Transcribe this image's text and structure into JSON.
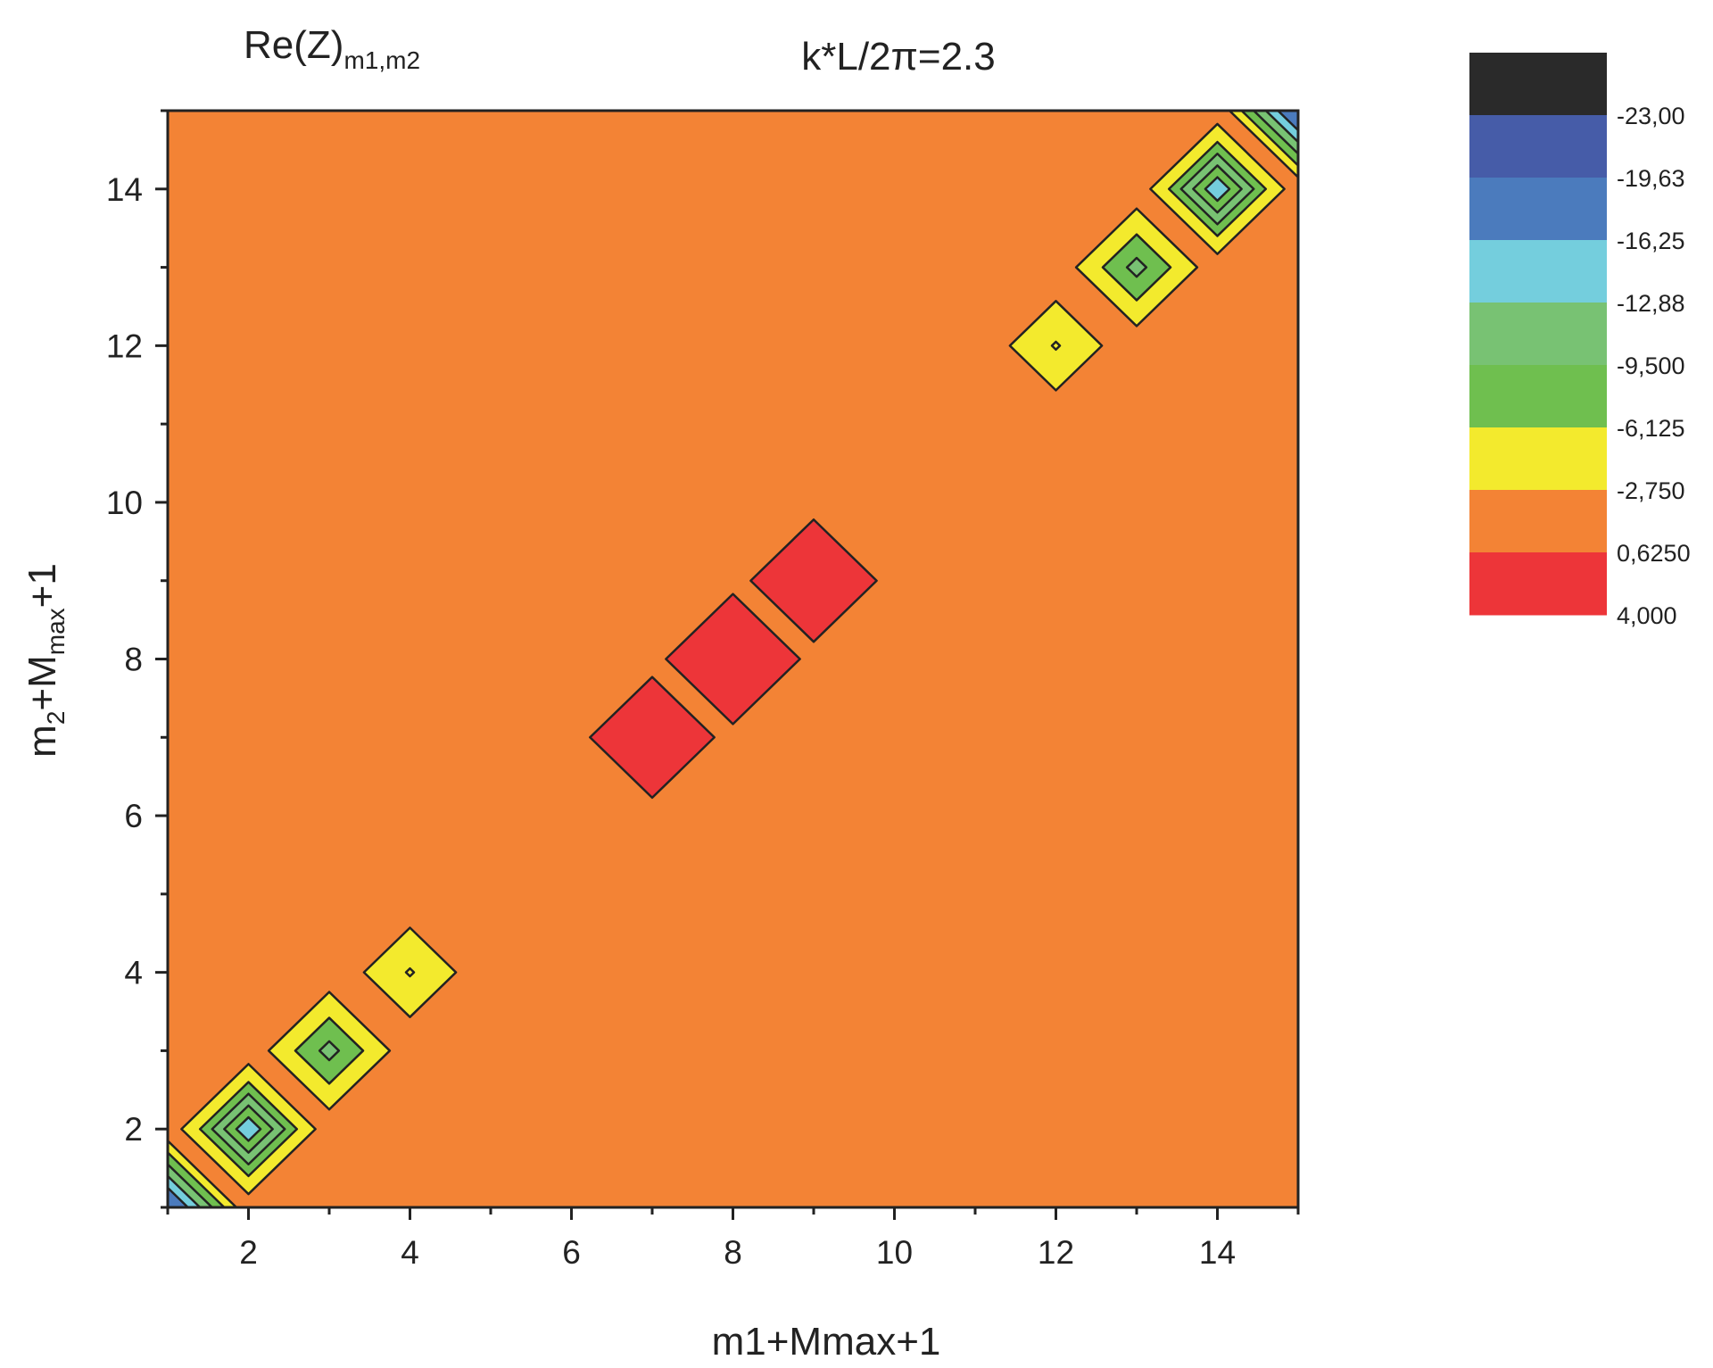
{
  "chart_data": {
    "type": "contour",
    "title_left": "Re(Z)",
    "title_left_sub": "m1,m2",
    "title_right": "k*L/2π=2.3",
    "xlabel": "m1+Mmax+1",
    "ylabel": {
      "base": "m",
      "sub1": "2",
      "mid": "+M",
      "sub2": "max",
      "end": "+1"
    },
    "xlim": [
      1,
      15
    ],
    "ylim": [
      1,
      15
    ],
    "xticks": [
      2,
      4,
      6,
      8,
      10,
      12,
      14
    ],
    "yticks": [
      2,
      4,
      6,
      8,
      10,
      12,
      14
    ],
    "background_level": "0,6250 to -2,750",
    "levels": [
      {
        "label": "-23,00",
        "color": "#2a2a2a"
      },
      {
        "label": "-19,63",
        "color": "#465ca8"
      },
      {
        "label": "-16,25",
        "color": "#4b7bbd"
      },
      {
        "label": "-12,88",
        "color": "#74cedd"
      },
      {
        "label": "-9,500",
        "color": "#78c273"
      },
      {
        "label": "-6,125",
        "color": "#6fbf4f"
      },
      {
        "label": "-2,750",
        "color": "#f3ea2d"
      },
      {
        "label": "0,6250",
        "color": "#f38335"
      },
      {
        "label": "4,000",
        "color": "#ed3539"
      }
    ],
    "background_color": "#f38335",
    "features": [
      {
        "center": [
          1,
          1
        ],
        "rings": [
          [
            0.85,
            "#f3ea2d"
          ],
          [
            0.7,
            "#6fbf4f"
          ],
          [
            0.55,
            "#78c273"
          ],
          [
            0.4,
            "#74cedd"
          ],
          [
            0.25,
            "#4b7bbd"
          ]
        ]
      },
      {
        "center": [
          2,
          2
        ],
        "rings": [
          [
            0.83,
            "#f3ea2d"
          ],
          [
            0.6,
            "#6fbf4f"
          ],
          [
            0.45,
            "#78c273"
          ],
          [
            0.3,
            "#6fbf4f"
          ],
          [
            0.15,
            "#74cedd"
          ]
        ]
      },
      {
        "center": [
          3,
          3
        ],
        "rings": [
          [
            0.75,
            "#f3ea2d"
          ],
          [
            0.42,
            "#6fbf4f"
          ],
          [
            0.12,
            "#78c273"
          ]
        ]
      },
      {
        "center": [
          4,
          4
        ],
        "rings": [
          [
            0.57,
            "#f3ea2d"
          ],
          [
            0.05,
            "#f3ea2d"
          ]
        ]
      },
      {
        "center": [
          7,
          7
        ],
        "rings": [
          [
            0.77,
            "#ed3539"
          ]
        ]
      },
      {
        "center": [
          8,
          8
        ],
        "rings": [
          [
            0.83,
            "#ed3539"
          ]
        ]
      },
      {
        "center": [
          9,
          9
        ],
        "rings": [
          [
            0.78,
            "#ed3539"
          ]
        ]
      },
      {
        "center": [
          12,
          12
        ],
        "rings": [
          [
            0.57,
            "#f3ea2d"
          ],
          [
            0.05,
            "#f3ea2d"
          ]
        ]
      },
      {
        "center": [
          13,
          13
        ],
        "rings": [
          [
            0.75,
            "#f3ea2d"
          ],
          [
            0.42,
            "#6fbf4f"
          ],
          [
            0.12,
            "#78c273"
          ]
        ]
      },
      {
        "center": [
          14,
          14
        ],
        "rings": [
          [
            0.83,
            "#f3ea2d"
          ],
          [
            0.6,
            "#6fbf4f"
          ],
          [
            0.45,
            "#78c273"
          ],
          [
            0.3,
            "#6fbf4f"
          ],
          [
            0.15,
            "#74cedd"
          ]
        ]
      },
      {
        "center": [
          15,
          15
        ],
        "rings": [
          [
            0.85,
            "#f3ea2d"
          ],
          [
            0.7,
            "#6fbf4f"
          ],
          [
            0.55,
            "#78c273"
          ],
          [
            0.4,
            "#74cedd"
          ],
          [
            0.25,
            "#4b7bbd"
          ]
        ]
      }
    ]
  }
}
